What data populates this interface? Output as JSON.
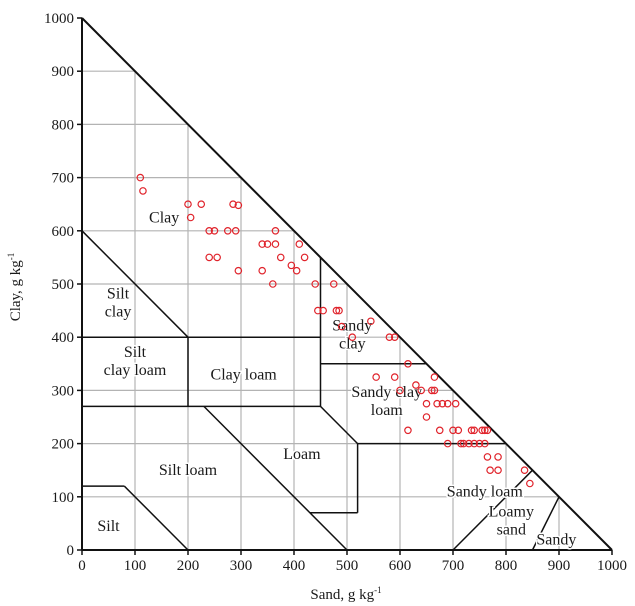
{
  "chart_data": {
    "type": "scatter",
    "title": "",
    "xlabel": "Sand, g kg",
    "xlabel_sup": "-1",
    "ylabel": "Clay, g kg",
    "ylabel_sup": "-1",
    "xlim": [
      0,
      1000
    ],
    "ylim": [
      0,
      1000
    ],
    "xticks": [
      "0",
      "100",
      "200",
      "300",
      "400",
      "500",
      "600",
      "700",
      "800",
      "900",
      "1000"
    ],
    "yticks": [
      "0",
      "100",
      "200",
      "300",
      "400",
      "500",
      "600",
      "700",
      "800",
      "900",
      "1000"
    ],
    "grid": true,
    "legend": "none",
    "colors": {
      "points": "#e0232b",
      "grid": "#b3b3b3",
      "lines": "#111111"
    },
    "marker": "open-circle",
    "regions": [
      {
        "lines": [
          "Clay"
        ],
        "sand": 155,
        "clay": 625
      },
      {
        "lines": [
          "Silt",
          "clay"
        ],
        "sand": 68,
        "clay": 465
      },
      {
        "lines": [
          "Sandy",
          "clay"
        ],
        "sand": 510,
        "clay": 405
      },
      {
        "lines": [
          "Silt",
          "clay loam"
        ],
        "sand": 100,
        "clay": 355
      },
      {
        "lines": [
          "Clay loam"
        ],
        "sand": 305,
        "clay": 330
      },
      {
        "lines": [
          "Sandy clay",
          "loam"
        ],
        "sand": 575,
        "clay": 280
      },
      {
        "lines": [
          "Loam"
        ],
        "sand": 415,
        "clay": 180
      },
      {
        "lines": [
          "Silt loam"
        ],
        "sand": 200,
        "clay": 150
      },
      {
        "lines": [
          "Sandy loam"
        ],
        "sand": 760,
        "clay": 110
      },
      {
        "lines": [
          "Silt"
        ],
        "sand": 50,
        "clay": 45
      },
      {
        "lines": [
          "Loamy",
          "sand"
        ],
        "sand": 810,
        "clay": 55
      },
      {
        "lines": [
          "Sandy"
        ],
        "sand": 895,
        "clay": 20
      }
    ],
    "points": [
      [
        110,
        700
      ],
      [
        115,
        675
      ],
      [
        200,
        650
      ],
      [
        225,
        650
      ],
      [
        205,
        625
      ],
      [
        240,
        600
      ],
      [
        250,
        600
      ],
      [
        275,
        600
      ],
      [
        285,
        650
      ],
      [
        295,
        648
      ],
      [
        290,
        600
      ],
      [
        240,
        550
      ],
      [
        255,
        550
      ],
      [
        295,
        525
      ],
      [
        340,
        575
      ],
      [
        350,
        575
      ],
      [
        365,
        600
      ],
      [
        365,
        575
      ],
      [
        375,
        550
      ],
      [
        340,
        525
      ],
      [
        360,
        500
      ],
      [
        395,
        535
      ],
      [
        405,
        525
      ],
      [
        410,
        575
      ],
      [
        420,
        550
      ],
      [
        440,
        500
      ],
      [
        445,
        450
      ],
      [
        455,
        450
      ],
      [
        475,
        500
      ],
      [
        480,
        450
      ],
      [
        485,
        450
      ],
      [
        490,
        420
      ],
      [
        510,
        400
      ],
      [
        545,
        430
      ],
      [
        580,
        400
      ],
      [
        590,
        400
      ],
      [
        555,
        325
      ],
      [
        590,
        325
      ],
      [
        615,
        350
      ],
      [
        600,
        300
      ],
      [
        630,
        310
      ],
      [
        640,
        300
      ],
      [
        660,
        300
      ],
      [
        665,
        325
      ],
      [
        665,
        300
      ],
      [
        650,
        275
      ],
      [
        670,
        275
      ],
      [
        680,
        275
      ],
      [
        690,
        275
      ],
      [
        705,
        275
      ],
      [
        615,
        225
      ],
      [
        650,
        250
      ],
      [
        675,
        225
      ],
      [
        690,
        200
      ],
      [
        700,
        225
      ],
      [
        710,
        225
      ],
      [
        715,
        200
      ],
      [
        720,
        200
      ],
      [
        730,
        200
      ],
      [
        735,
        225
      ],
      [
        740,
        225
      ],
      [
        740,
        200
      ],
      [
        750,
        200
      ],
      [
        755,
        225
      ],
      [
        760,
        225
      ],
      [
        760,
        200
      ],
      [
        765,
        225
      ],
      [
        765,
        175
      ],
      [
        770,
        150
      ],
      [
        785,
        175
      ],
      [
        785,
        150
      ],
      [
        835,
        150
      ],
      [
        845,
        125
      ]
    ]
  }
}
